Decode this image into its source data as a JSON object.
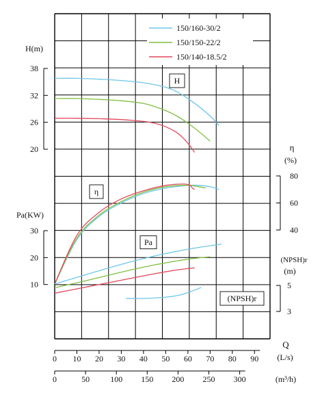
{
  "chart_data": {
    "type": "line",
    "grid": true,
    "legend_position": "top-right",
    "series_colors": [
      "#6ec6e8",
      "#7fbf3f",
      "#e2475a"
    ],
    "legend": [
      "150/160-30/2",
      "150/150-22/2",
      "150/140-18.5/2"
    ],
    "x_axis": {
      "label": "Q",
      "flow_unit": "(L/s)",
      "flow_ticks": [
        0,
        10,
        20,
        30,
        40,
        50,
        60,
        70,
        80,
        90
      ],
      "flow_range": [
        0,
        97
      ],
      "m3h_unit": "(m³/h)",
      "m3h_ticks": [
        0,
        50,
        100,
        150,
        200,
        250,
        300
      ],
      "m3h_per_ls": 3.6
    },
    "H": {
      "axis_label": "H(m)",
      "ticks": [
        "38",
        "32",
        "26",
        "20"
      ],
      "range": [
        20,
        38
      ],
      "box_label": "H",
      "series": [
        {
          "name": "150/160-30/2",
          "x": [
            0,
            10,
            20,
            30,
            40,
            50,
            55,
            60,
            65,
            70,
            74
          ],
          "y": [
            35.8,
            35.8,
            35.6,
            35.3,
            34.8,
            33.8,
            32.8,
            31.3,
            29.5,
            27.4,
            25.3
          ]
        },
        {
          "name": "150/150-22/2",
          "x": [
            0,
            10,
            20,
            30,
            40,
            45,
            50,
            55,
            60,
            65,
            70
          ],
          "y": [
            31.3,
            31.3,
            31.1,
            30.8,
            30.2,
            29.5,
            28.6,
            27.4,
            25.8,
            23.9,
            21.8
          ]
        },
        {
          "name": "150/140-18.5/2",
          "x": [
            0,
            10,
            20,
            30,
            40,
            45,
            50,
            55,
            58,
            61,
            63
          ],
          "y": [
            26.9,
            26.9,
            26.8,
            26.6,
            26.2,
            25.8,
            25.0,
            23.7,
            22.4,
            20.7,
            19.3
          ]
        }
      ]
    },
    "eta": {
      "axis_label": "η",
      "unit": "(%)",
      "ticks": [
        "80",
        "60",
        "40"
      ],
      "range": [
        40,
        80
      ],
      "box_label": "η",
      "series": [
        {
          "name": "150/160-30/2",
          "x": [
            0,
            10,
            20,
            30,
            40,
            50,
            60,
            65,
            70,
            74
          ],
          "y": [
            0,
            33,
            50,
            60,
            67,
            71,
            73,
            73,
            72,
            70
          ]
        },
        {
          "name": "150/150-22/2",
          "x": [
            0,
            10,
            20,
            30,
            40,
            50,
            60,
            65,
            68
          ],
          "y": [
            0,
            34,
            51,
            61,
            68,
            72,
            73,
            72,
            71
          ]
        },
        {
          "name": "150/140-18.5/2",
          "x": [
            0,
            10,
            20,
            30,
            40,
            50,
            58,
            61,
            62,
            63
          ],
          "y": [
            0,
            36,
            53,
            63,
            69,
            73,
            74,
            73,
            71,
            70
          ]
        }
      ]
    },
    "Pa": {
      "axis_label": "Pa(KW)",
      "ticks": [
        "30",
        "20",
        "10"
      ],
      "range": [
        0,
        30
      ],
      "box_label": "Pa",
      "series": [
        {
          "name": "150/160-30/2",
          "x": [
            0,
            15,
            30,
            45,
            60,
            75
          ],
          "y": [
            10.2,
            13.9,
            17.5,
            20.6,
            23.1,
            25.0
          ]
        },
        {
          "name": "150/150-22/2",
          "x": [
            0,
            15,
            30,
            45,
            60,
            70
          ],
          "y": [
            8.8,
            11.6,
            14.6,
            17.3,
            19.4,
            20.3
          ]
        },
        {
          "name": "150/140-18.5/2",
          "x": [
            0,
            15,
            30,
            45,
            55,
            63
          ],
          "y": [
            6.8,
            9.2,
            11.6,
            14.0,
            15.4,
            16.2
          ]
        }
      ]
    },
    "npsh": {
      "axis_label": "(NPSH)r",
      "unit": "(m)",
      "ticks": [
        "5",
        "3"
      ],
      "range": [
        3,
        5
      ],
      "box_label": "(NPSH)r",
      "series": [
        {
          "name": "150/160-30/2",
          "x": [
            32,
            40,
            50,
            56,
            60,
            64,
            66
          ],
          "y": [
            4.0,
            4.0,
            4.1,
            4.25,
            4.45,
            4.7,
            4.85
          ]
        }
      ]
    }
  }
}
